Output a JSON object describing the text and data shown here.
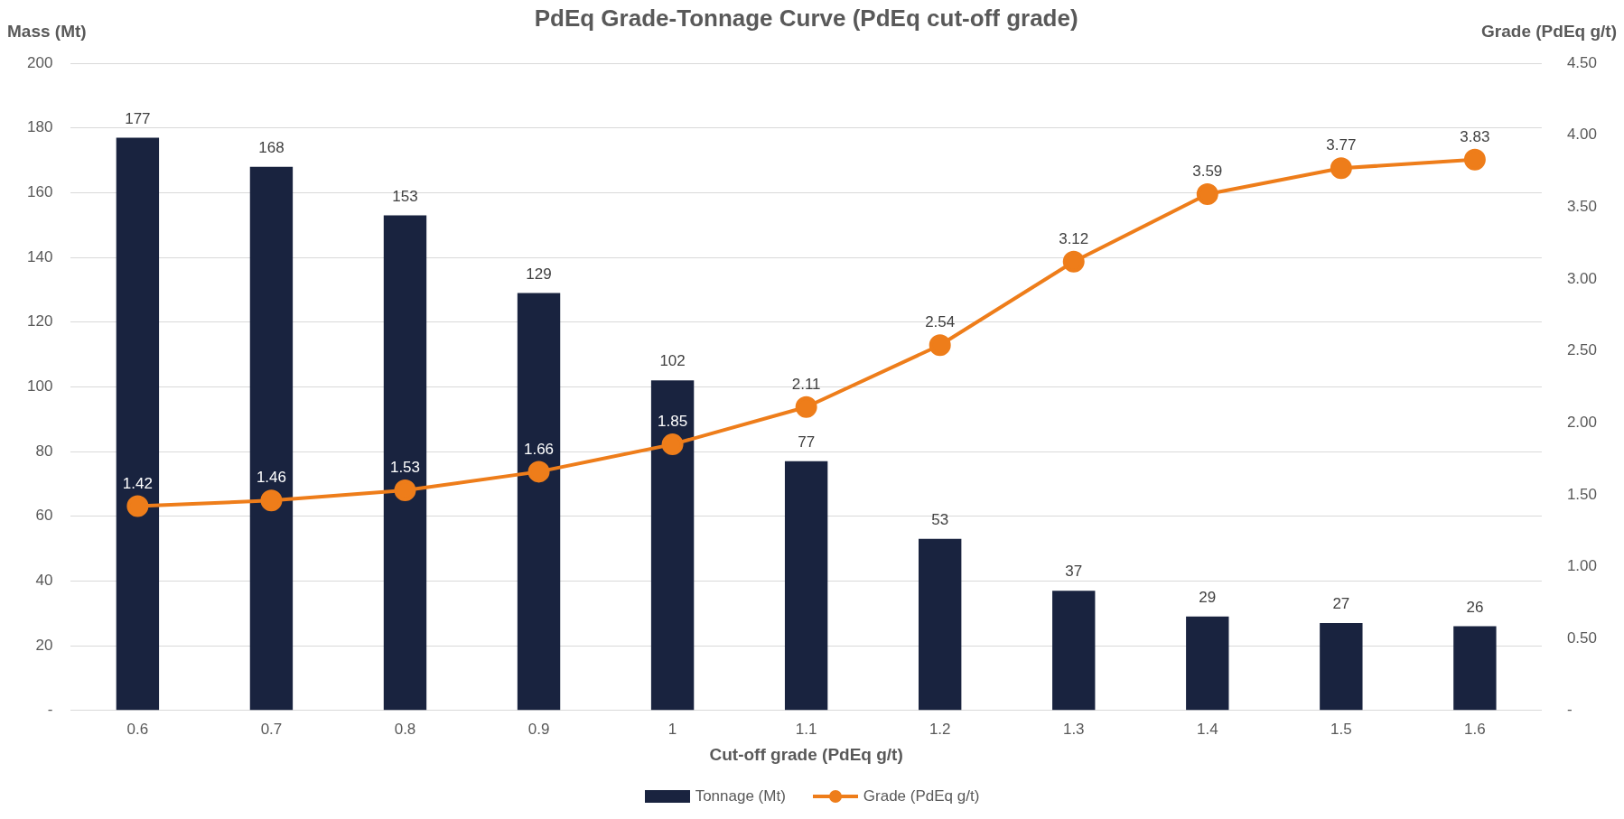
{
  "chart_data": {
    "type": "bar",
    "title": "PdEq Grade-Tonnage Curve (PdEq cut-off grade)",
    "xlabel": "Cut-off grade (PdEq g/t)",
    "ylabel": "Mass (Mt)",
    "y2label": "Grade (PdEq g/t)",
    "categories": [
      "0.6",
      "0.7",
      "0.8",
      "0.9",
      "1",
      "1.1",
      "1.2",
      "1.3",
      "1.4",
      "1.5",
      "1.6"
    ],
    "series": [
      {
        "name": "Tonnage (Mt)",
        "color": "#19233f",
        "values": [
          177,
          168,
          153,
          129,
          102,
          77,
          53,
          37,
          29,
          27,
          26
        ]
      },
      {
        "name": "Grade (PdEq g/t)",
        "type": "line",
        "axis": "y2",
        "color": "#ee7d1a",
        "marker": "circle",
        "values": [
          1.42,
          1.46,
          1.53,
          1.66,
          1.85,
          2.11,
          2.54,
          3.12,
          3.59,
          3.77,
          3.83
        ]
      }
    ],
    "ylim": [
      0,
      200
    ],
    "yticks": [
      {
        "value": 0,
        "label": "-"
      },
      20,
      40,
      60,
      80,
      100,
      120,
      140,
      160,
      180,
      200
    ],
    "y2lim": [
      0,
      4.5
    ],
    "y2ticks": [
      {
        "value": 0,
        "label": "-"
      },
      {
        "value": 0.5,
        "label": "0.50"
      },
      {
        "value": 1,
        "label": "1.00"
      },
      {
        "value": 1.5,
        "label": "1.50"
      },
      {
        "value": 2,
        "label": "2.00"
      },
      {
        "value": 2.5,
        "label": "2.50"
      },
      {
        "value": 3,
        "label": "3.00"
      },
      {
        "value": 3.5,
        "label": "3.50"
      },
      {
        "value": 4,
        "label": "4.00"
      },
      {
        "value": 4.5,
        "label": "4.50"
      }
    ],
    "grid": "y",
    "legend": "bottom",
    "data_labels": true
  }
}
